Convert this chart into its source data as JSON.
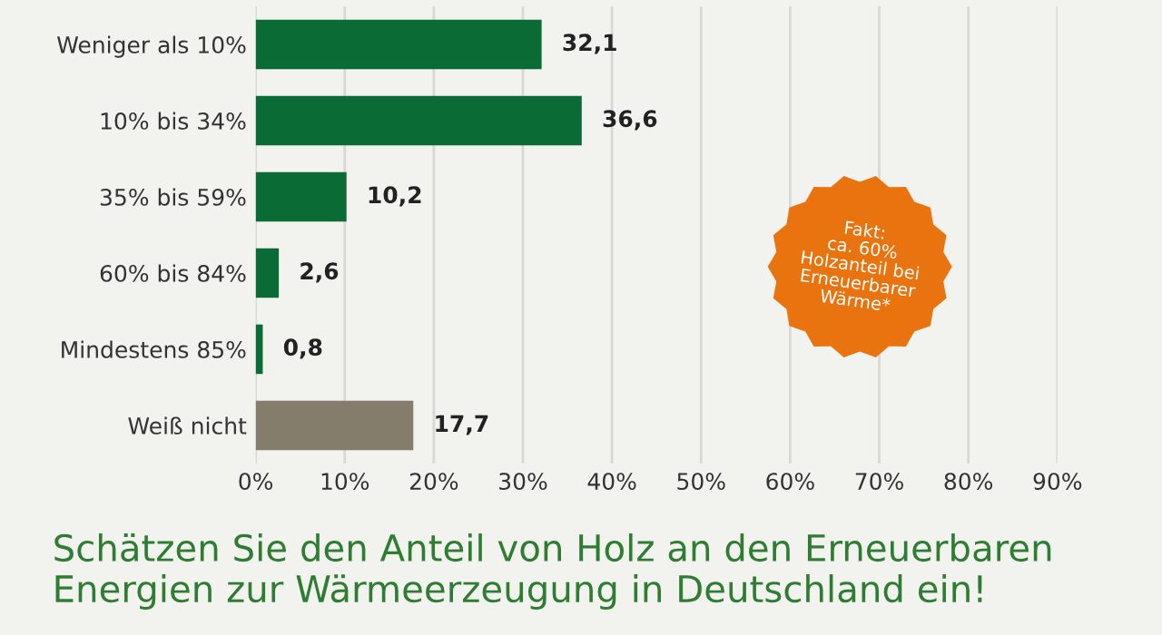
{
  "chart_data": {
    "type": "bar",
    "orientation": "horizontal",
    "title": "Schätzen Sie den Anteil von Holz an den Erneuerbaren Energien zur Wärmeerzeugung in Deutschland ein!",
    "categories": [
      "Weniger als 10%",
      "10% bis 34%",
      "35% bis 59%",
      "60% bis 84%",
      "Mindestens 85%",
      "Weiß nicht"
    ],
    "values": [
      32.1,
      36.6,
      10.2,
      2.6,
      0.8,
      17.7
    ],
    "value_labels": [
      "32,1",
      "36,6",
      "10,2",
      "2,6",
      "0,8",
      "17,7"
    ],
    "colors": [
      "#0b6b35",
      "#0b6b35",
      "#0b6b35",
      "#0b6b35",
      "#0b6b35",
      "#857d6c"
    ],
    "xlim": [
      0,
      90
    ],
    "xticks": [
      {
        "value": 0,
        "label": "0%"
      },
      {
        "value": 10,
        "label": "10%"
      },
      {
        "value": 20,
        "label": "20%"
      },
      {
        "value": 30,
        "label": "30%"
      },
      {
        "value": 40,
        "label": "40%"
      },
      {
        "value": 50,
        "label": "50%"
      },
      {
        "value": 60,
        "label": "60%"
      },
      {
        "value": 70,
        "label": "70%"
      },
      {
        "value": 80,
        "label": "80%"
      },
      {
        "value": 90,
        "label": "90%"
      }
    ],
    "grid": "x",
    "annotations": [
      "Fakt:\nca. 60%\nHolzanteil bei\nErneuerbarer\nWärme*"
    ]
  }
}
